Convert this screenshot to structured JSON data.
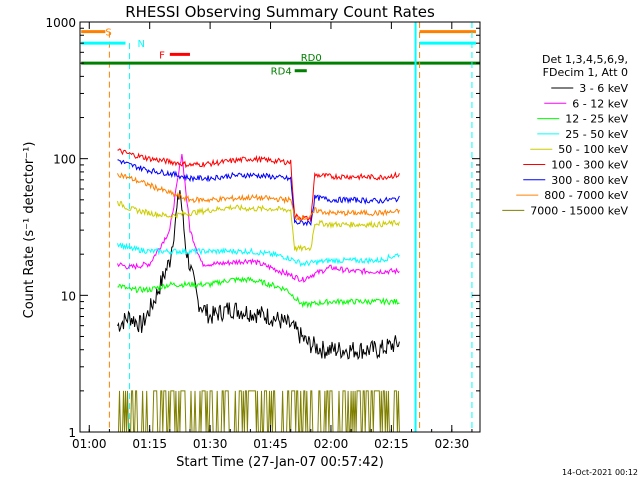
{
  "chart_data": {
    "type": "line",
    "title": "RHESSI Observing Summary Count Rates",
    "xlabel": "Start Time (27-Jan-07 00:57:42)",
    "ylabel": "Count Rate (s⁻¹ detector⁻¹)",
    "y_scale": "log",
    "ylim": [
      1,
      1000
    ],
    "xlim": [
      "00:57:42",
      "02:37:00"
    ],
    "x_ticks": [
      "01:00",
      "01:15",
      "01:30",
      "01:45",
      "02:00",
      "02:15",
      "02:30"
    ],
    "y_ticks": [
      "1",
      "10",
      "100",
      "1000"
    ],
    "legend_header": [
      "Det 1,3,4,5,6,9,",
      "FDecim 1, Att 0"
    ],
    "legend_position": "right",
    "footer": "14-Oct-2021 00:12",
    "series": [
      {
        "name": "3 - 6 keV",
        "color": "#000000",
        "points": [
          [
            "01:07",
            6
          ],
          [
            "01:10",
            7
          ],
          [
            "01:13",
            6
          ],
          [
            "01:16",
            9
          ],
          [
            "01:20",
            18
          ],
          [
            "01:22.5",
            60
          ],
          [
            "01:24",
            22
          ],
          [
            "01:27",
            9
          ],
          [
            "01:30",
            7
          ],
          [
            "01:35",
            8
          ],
          [
            "01:40",
            7.5
          ],
          [
            "01:45",
            7
          ],
          [
            "01:50",
            6
          ],
          [
            "01:54",
            4.5
          ],
          [
            "01:58",
            4
          ],
          [
            "02:05",
            4
          ],
          [
            "02:12",
            4
          ],
          [
            "02:17",
            4.5
          ]
        ]
      },
      {
        "name": "6 - 12 keV",
        "color": "#ff00ff",
        "points": [
          [
            "01:07",
            17
          ],
          [
            "01:10",
            16
          ],
          [
            "01:15",
            17
          ],
          [
            "01:20",
            30
          ],
          [
            "01:23",
            110
          ],
          [
            "01:25",
            30
          ],
          [
            "01:28",
            17
          ],
          [
            "01:32",
            17
          ],
          [
            "01:40",
            18
          ],
          [
            "01:45",
            16
          ],
          [
            "01:50",
            14
          ],
          [
            "01:53",
            13
          ],
          [
            "01:55",
            14
          ],
          [
            "02:00",
            16
          ],
          [
            "02:05",
            15
          ],
          [
            "02:12",
            15
          ],
          [
            "02:17",
            15
          ]
        ]
      },
      {
        "name": "12 - 25 keV",
        "color": "#00ff00",
        "points": [
          [
            "01:07",
            12
          ],
          [
            "01:10",
            11
          ],
          [
            "01:15",
            11
          ],
          [
            "01:20",
            12
          ],
          [
            "01:30",
            12
          ],
          [
            "01:35",
            13
          ],
          [
            "01:40",
            13
          ],
          [
            "01:45",
            12
          ],
          [
            "01:49",
            11
          ],
          [
            "01:53",
            8.5
          ],
          [
            "02:00",
            9
          ],
          [
            "02:05",
            9
          ],
          [
            "02:12",
            9
          ],
          [
            "02:17",
            9
          ]
        ]
      },
      {
        "name": "25 - 50 keV",
        "color": "#00ffff",
        "points": [
          [
            "01:07",
            24
          ],
          [
            "01:10",
            22
          ],
          [
            "01:15",
            21
          ],
          [
            "01:20",
            21
          ],
          [
            "01:30",
            21
          ],
          [
            "01:40",
            21
          ],
          [
            "01:45",
            20
          ],
          [
            "01:49",
            19
          ],
          [
            "01:53",
            17
          ],
          [
            "02:00",
            18
          ],
          [
            "02:05",
            18
          ],
          [
            "02:12",
            18
          ],
          [
            "02:17",
            20
          ]
        ]
      },
      {
        "name": "50 - 100 keV",
        "color": "#cccc00",
        "points": [
          [
            "01:07",
            48
          ],
          [
            "01:10",
            43
          ],
          [
            "01:15",
            40
          ],
          [
            "01:20",
            38
          ],
          [
            "01:25",
            40
          ],
          [
            "01:30",
            42
          ],
          [
            "01:35",
            44
          ],
          [
            "01:40",
            43
          ],
          [
            "01:45",
            43
          ],
          [
            "01:50",
            42
          ],
          [
            "01:51",
            22
          ],
          [
            "01:55",
            22
          ],
          [
            "01:56",
            34
          ],
          [
            "02:00",
            33
          ],
          [
            "02:05",
            33
          ],
          [
            "02:12",
            33
          ],
          [
            "02:17",
            34
          ]
        ]
      },
      {
        "name": "100 - 300 keV",
        "color": "#ff0000",
        "points": [
          [
            "01:07",
            115
          ],
          [
            "01:10",
            108
          ],
          [
            "01:15",
            100
          ],
          [
            "01:20",
            95
          ],
          [
            "01:25",
            90
          ],
          [
            "01:30",
            92
          ],
          [
            "01:35",
            96
          ],
          [
            "01:40",
            100
          ],
          [
            "01:45",
            97
          ],
          [
            "01:50",
            94
          ],
          [
            "01:51",
            38
          ],
          [
            "01:55",
            36
          ],
          [
            "01:56",
            76
          ],
          [
            "02:00",
            74
          ],
          [
            "02:05",
            74
          ],
          [
            "02:12",
            73
          ],
          [
            "02:17",
            76
          ]
        ]
      },
      {
        "name": "300 - 800 keV",
        "color": "#0000ff",
        "points": [
          [
            "01:07",
            98
          ],
          [
            "01:10",
            90
          ],
          [
            "01:15",
            82
          ],
          [
            "01:20",
            78
          ],
          [
            "01:25",
            72
          ],
          [
            "01:30",
            72
          ],
          [
            "01:35",
            75
          ],
          [
            "01:40",
            76
          ],
          [
            "01:45",
            74
          ],
          [
            "01:50",
            71
          ],
          [
            "01:51",
            34
          ],
          [
            "01:55",
            34
          ],
          [
            "01:56",
            52
          ],
          [
            "02:00",
            50
          ],
          [
            "02:05",
            50
          ],
          [
            "02:12",
            49
          ],
          [
            "02:17",
            51
          ]
        ]
      },
      {
        "name": "800 - 7000 keV",
        "color": "#ff8000",
        "points": [
          [
            "01:07",
            78
          ],
          [
            "01:10",
            72
          ],
          [
            "01:15",
            64
          ],
          [
            "01:20",
            56
          ],
          [
            "01:25",
            50
          ],
          [
            "01:30",
            50
          ],
          [
            "01:35",
            51
          ],
          [
            "01:40",
            52
          ],
          [
            "01:45",
            51
          ],
          [
            "01:50",
            50
          ],
          [
            "01:51",
            37
          ],
          [
            "01:55",
            37
          ],
          [
            "01:56",
            42
          ],
          [
            "02:00",
            40
          ],
          [
            "02:05",
            40
          ],
          [
            "02:12",
            40
          ],
          [
            "02:17",
            41
          ]
        ]
      },
      {
        "name": "7000 - 15000 keV",
        "color": "#808000",
        "points": [
          [
            "01:07",
            2
          ],
          [
            "01:10",
            2
          ],
          [
            "01:15",
            2
          ],
          [
            "01:20",
            2
          ],
          [
            "01:30",
            2
          ],
          [
            "01:40",
            2
          ],
          [
            "01:50",
            2
          ],
          [
            "02:00",
            2
          ],
          [
            "02:10",
            2
          ],
          [
            "02:17",
            2
          ]
        ]
      }
    ],
    "markers": [
      {
        "label": "S",
        "color": "#ff8000",
        "bar": [
          "00:58:00",
          "01:04:00"
        ],
        "level": 850,
        "vline": "01:05:00"
      },
      {
        "label": "N",
        "color": "#00ffff",
        "bar": [
          "00:58:00",
          "01:09:00"
        ],
        "level": 700,
        "vline": "01:10:00"
      },
      {
        "label": "F",
        "color": "#ff0000",
        "bar": [
          "01:20:00",
          "01:25:00"
        ],
        "level": 580
      },
      {
        "label": "RD0",
        "color": "#008000",
        "bar": [
          "00:58:00",
          "02:37:00"
        ],
        "level": 500
      },
      {
        "label": "RD4",
        "color": "#008000",
        "bar": [
          "01:51:00",
          "01:54:00"
        ],
        "level": 440
      }
    ],
    "right_markers": [
      {
        "color": "#ff8000",
        "bar": [
          "02:22:00",
          "02:36:00"
        ],
        "level": 850,
        "vline": "02:22:00"
      },
      {
        "color": "#00ffff",
        "bar": [
          "02:22:00",
          "02:36:00"
        ],
        "level": 700,
        "vline": "02:35:00"
      },
      {
        "color": "#00ffff",
        "vline": "02:21:00"
      }
    ]
  }
}
